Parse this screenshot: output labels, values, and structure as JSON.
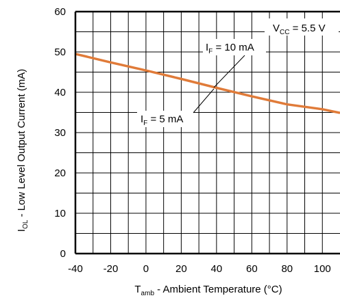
{
  "chart_data": {
    "type": "line",
    "x_axis": {
      "label_main": "T",
      "label_sub": "amb",
      "label_rest": " - Ambient Temperature (°C)",
      "range": [
        -40,
        110
      ],
      "ticks": [
        -40,
        -20,
        0,
        20,
        40,
        60,
        80,
        100
      ],
      "tick_labels": [
        "-40",
        "-20",
        "0",
        "20",
        "40",
        "60",
        "80",
        "100"
      ]
    },
    "y_axis": {
      "label_main": "I",
      "label_sub": "OL",
      "label_rest": " - Low Level Output Current (mA)",
      "range": [
        0,
        60
      ],
      "ticks": [
        0,
        10,
        20,
        30,
        40,
        50,
        60
      ],
      "tick_labels": [
        "0",
        "10",
        "20",
        "30",
        "40",
        "50",
        "60"
      ]
    },
    "grid": true,
    "series": [
      {
        "color": "#e07b39",
        "x": [
          -40,
          -20,
          0,
          20,
          40,
          60,
          80,
          100,
          110
        ],
        "y": [
          49.5,
          47.4,
          45.4,
          43.3,
          41.1,
          39.0,
          37.0,
          35.8,
          34.9
        ]
      }
    ],
    "annotations": [
      {
        "main": "V",
        "sub": "CC",
        "rest": " = 5.5 V"
      },
      {
        "main": "I",
        "sub": "F",
        "rest": " = 10 mA"
      },
      {
        "main": "I",
        "sub": "F",
        "rest": " = 5 mA"
      }
    ]
  }
}
